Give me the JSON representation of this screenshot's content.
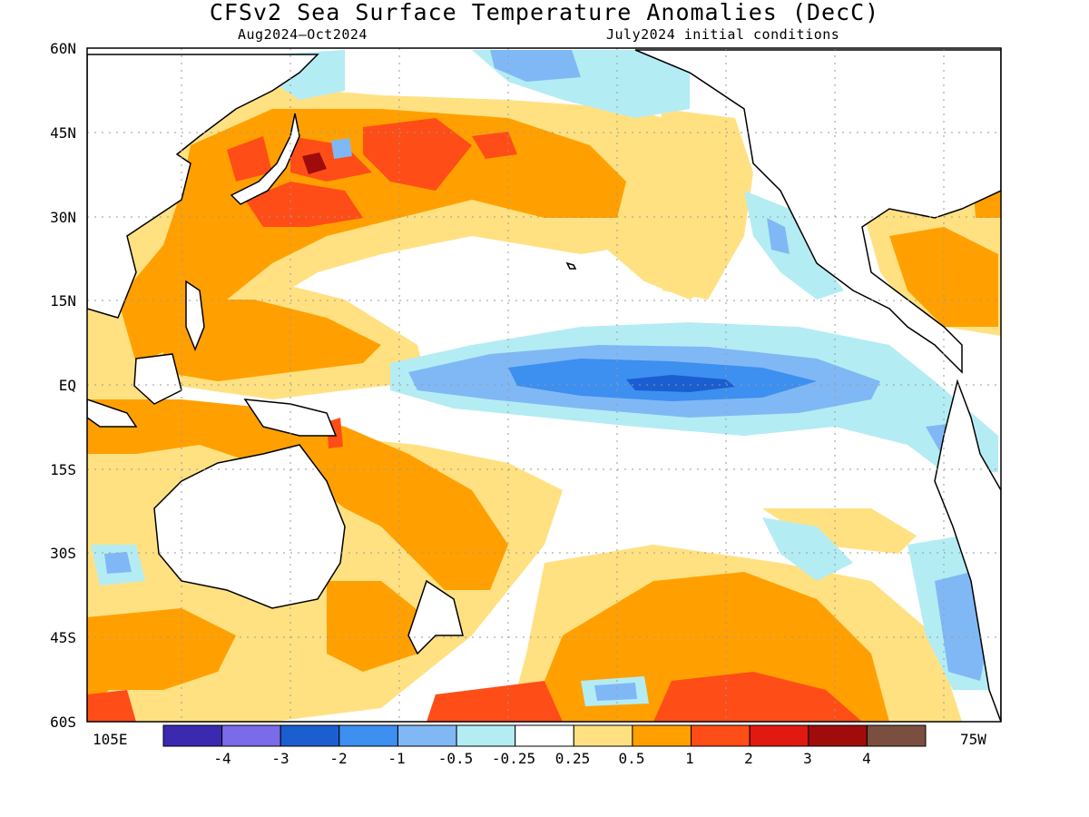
{
  "title": "CFSv2 Sea Surface Temperature Anomalies (DecC)",
  "subtitle_left": "Aug2024—Oct2024",
  "subtitle_right": "July2024 initial conditions",
  "lat_labels": [
    "60N",
    "45N",
    "30N",
    "15N",
    "EQ",
    "15S",
    "30S",
    "45S",
    "60S"
  ],
  "lon_labels": {
    "west": "105E",
    "east": "75W"
  },
  "colorbar": {
    "tick_labels": [
      "-4",
      "-3",
      "-2",
      "-1",
      "-0.5",
      "-0.25",
      "0.25",
      "0.5",
      "1",
      "2",
      "3",
      "4"
    ],
    "colors": [
      "#3b29b0",
      "#7a6be8",
      "#1a5ed0",
      "#3d8ff0",
      "#80b8f5",
      "#b4ecf4",
      "#ffffff",
      "#ffe182",
      "#ffa000",
      "#ff4d18",
      "#e01a10",
      "#a00c0c",
      "#7a4f40"
    ]
  },
  "colors": {
    "strong_cool": "#3d8ff0",
    "very_strong_cool": "#1a5ed0",
    "cool": "#80b8f5",
    "slight_cool": "#b4ecf4",
    "slight_warm": "#ffe182",
    "warm": "#ffa000",
    "strong_warm": "#ff4d18",
    "very_strong_warm": "#e01a10",
    "extreme_warm": "#a00c0c",
    "land_outline": "#000000"
  }
}
